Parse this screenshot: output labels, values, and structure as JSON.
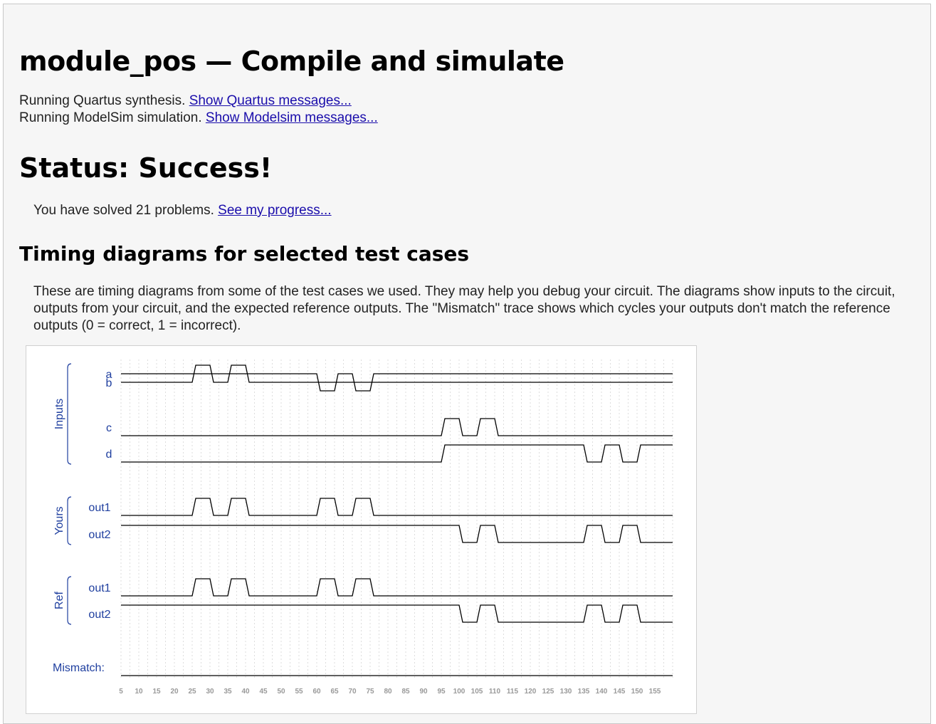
{
  "page": {
    "title": "module_pos — Compile and simulate",
    "quartus_text": "Running Quartus synthesis.",
    "quartus_link": "Show Quartus messages...",
    "modelsim_text": "Running ModelSim simulation.",
    "modelsim_link": "Show Modelsim messages...",
    "status": "Status: Success!",
    "solved_text": "You have solved 21 problems.",
    "progress_link": "See my progress...",
    "timing_heading": "Timing diagrams for selected test cases",
    "description": "These are timing diagrams from some of the test cases we used. They may help you debug your circuit. The diagrams show inputs to the circuit, outputs from your circuit, and the expected reference outputs. The \"Mismatch\" trace shows which cycles your outputs don't match the reference outputs (0 = correct, 1 = incorrect)."
  },
  "colors": {
    "label": "#1f3f9f",
    "trace": "#000000",
    "grid": "#dddddd",
    "tick": "#999999",
    "link": "#1a0dab"
  },
  "waveform": {
    "time_unit_per_cycle": 5,
    "groups": [
      {
        "name": "Inputs",
        "signals": [
          "a",
          "b",
          "c",
          "d"
        ]
      },
      {
        "name": "Yours",
        "signals": [
          "out1",
          "out2"
        ]
      },
      {
        "name": "Ref",
        "signals": [
          "out1",
          "out2"
        ]
      }
    ],
    "mismatch_label": "Mismatch:",
    "ticks": [
      5,
      10,
      15,
      20,
      25,
      30,
      35,
      40,
      45,
      50,
      55,
      60,
      65,
      70,
      75,
      80,
      85,
      90,
      95,
      100,
      105,
      110,
      115,
      120,
      125,
      130,
      135,
      140,
      145,
      150,
      155
    ],
    "signals": [
      {
        "name": "a",
        "group": "Inputs",
        "values": [
          0,
          0,
          0,
          0,
          0,
          1,
          0,
          1,
          0,
          0,
          0,
          0,
          0,
          0,
          0,
          0,
          0,
          0,
          0,
          0,
          0,
          0,
          0,
          0,
          0,
          0,
          0,
          0,
          0,
          0,
          0,
          0
        ]
      },
      {
        "name": "b",
        "group": "Inputs",
        "values": [
          1,
          1,
          1,
          1,
          1,
          1,
          1,
          1,
          1,
          1,
          1,
          1,
          0,
          1,
          0,
          1,
          1,
          1,
          1,
          1,
          1,
          1,
          1,
          1,
          1,
          1,
          1,
          1,
          1,
          1,
          1,
          1
        ]
      },
      {
        "name": "c",
        "group": "Inputs",
        "values": [
          0,
          0,
          0,
          0,
          0,
          0,
          0,
          0,
          0,
          0,
          0,
          0,
          0,
          0,
          0,
          0,
          0,
          0,
          0,
          1,
          0,
          1,
          0,
          0,
          0,
          0,
          0,
          0,
          0,
          0,
          0,
          0
        ]
      },
      {
        "name": "d",
        "group": "Inputs",
        "values": [
          0,
          0,
          0,
          0,
          0,
          0,
          0,
          0,
          0,
          0,
          0,
          0,
          0,
          0,
          0,
          0,
          0,
          0,
          0,
          1,
          1,
          1,
          1,
          1,
          1,
          1,
          1,
          0,
          1,
          0,
          1,
          1
        ]
      },
      {
        "name": "out1",
        "group": "Yours",
        "values": [
          0,
          0,
          0,
          0,
          0,
          1,
          0,
          1,
          0,
          0,
          0,
          0,
          1,
          0,
          1,
          0,
          0,
          0,
          0,
          0,
          0,
          0,
          0,
          0,
          0,
          0,
          0,
          0,
          0,
          0,
          0,
          0
        ]
      },
      {
        "name": "out2",
        "group": "Yours",
        "values": [
          1,
          1,
          1,
          1,
          1,
          1,
          1,
          1,
          1,
          1,
          1,
          1,
          1,
          1,
          1,
          1,
          1,
          1,
          1,
          1,
          0,
          1,
          0,
          0,
          0,
          0,
          0,
          1,
          0,
          1,
          0,
          0
        ]
      },
      {
        "name": "out1",
        "group": "Ref",
        "values": [
          0,
          0,
          0,
          0,
          0,
          1,
          0,
          1,
          0,
          0,
          0,
          0,
          1,
          0,
          1,
          0,
          0,
          0,
          0,
          0,
          0,
          0,
          0,
          0,
          0,
          0,
          0,
          0,
          0,
          0,
          0,
          0
        ]
      },
      {
        "name": "out2",
        "group": "Ref",
        "values": [
          1,
          1,
          1,
          1,
          1,
          1,
          1,
          1,
          1,
          1,
          1,
          1,
          1,
          1,
          1,
          1,
          1,
          1,
          1,
          1,
          0,
          1,
          0,
          0,
          0,
          0,
          0,
          1,
          0,
          1,
          0,
          0
        ]
      }
    ],
    "mismatch_values": [
      0,
      0,
      0,
      0,
      0,
      0,
      0,
      0,
      0,
      0,
      0,
      0,
      0,
      0,
      0,
      0,
      0,
      0,
      0,
      0,
      0,
      0,
      0,
      0,
      0,
      0,
      0,
      0,
      0,
      0,
      0,
      0
    ]
  }
}
